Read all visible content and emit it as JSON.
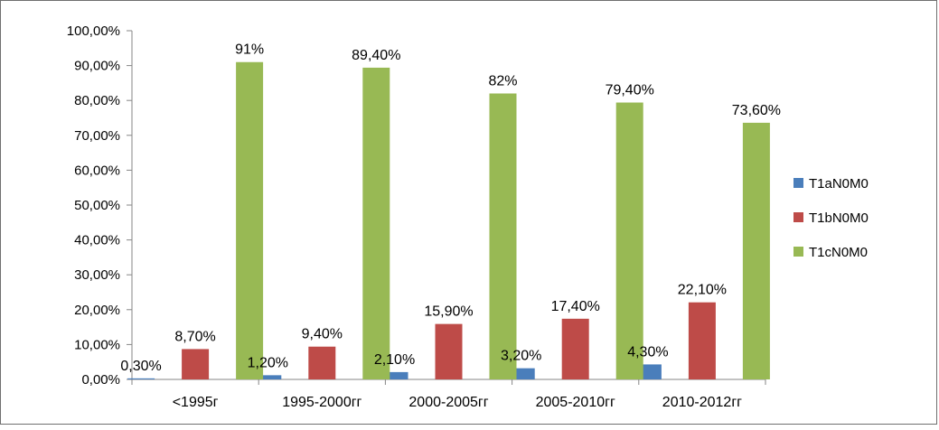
{
  "chart_data": {
    "type": "bar",
    "title": "",
    "xlabel": "",
    "ylabel": "",
    "ylim": [
      0,
      100
    ],
    "y_ticks": [
      "0,00%",
      "10,00%",
      "20,00%",
      "30,00%",
      "40,00%",
      "50,00%",
      "60,00%",
      "70,00%",
      "80,00%",
      "90,00%",
      "100,00%"
    ],
    "categories": [
      "<1995г",
      "1995-2000гг",
      "2000-2005гг",
      "2005-2010гг",
      "2010-2012гг"
    ],
    "series": [
      {
        "name": "T1aN0M0",
        "color": "#4a7ebb",
        "values": [
          0.3,
          1.2,
          2.1,
          3.2,
          4.3
        ],
        "labels": [
          "0,30%",
          "1,20%",
          "2,10%",
          "3,20%",
          "4,30%"
        ]
      },
      {
        "name": "T1bN0M0",
        "color": "#be4b48",
        "values": [
          8.7,
          9.4,
          15.9,
          17.4,
          22.1
        ],
        "labels": [
          "8,70%",
          "9,40%",
          "15,90%",
          "17,40%",
          "22,10%"
        ]
      },
      {
        "name": "T1cN0M0",
        "color": "#98b954",
        "values": [
          91,
          89.4,
          82,
          79.4,
          73.6
        ],
        "labels": [
          "91%",
          "89,40%",
          "82%",
          "79,40%",
          "73,60%"
        ]
      }
    ],
    "grid": false,
    "legend_position": "right"
  }
}
